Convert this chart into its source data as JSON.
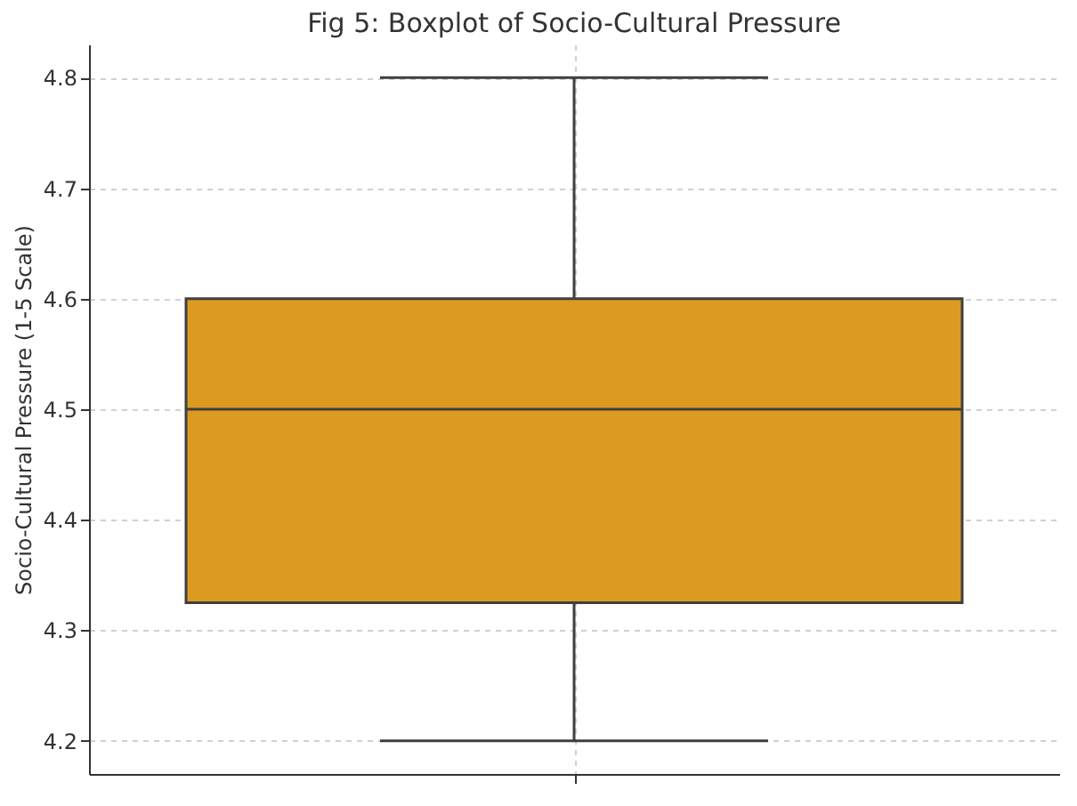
{
  "chart_data": {
    "type": "box",
    "title": "Fig 5: Boxplot of Socio-Cultural Pressure",
    "ylabel": "Socio-Cultural Pressure (1-5 Scale)",
    "categories": [
      null
    ],
    "boxes": [
      {
        "low": 4.2,
        "q1": 4.325,
        "median": 4.5,
        "q3": 4.6,
        "high": 4.8
      }
    ],
    "color": "#db9a20",
    "ylim": [
      4.17,
      4.83
    ],
    "yticks": [
      4.2,
      4.3,
      4.4,
      4.5,
      4.6,
      4.7,
      4.8
    ],
    "grid": true
  }
}
